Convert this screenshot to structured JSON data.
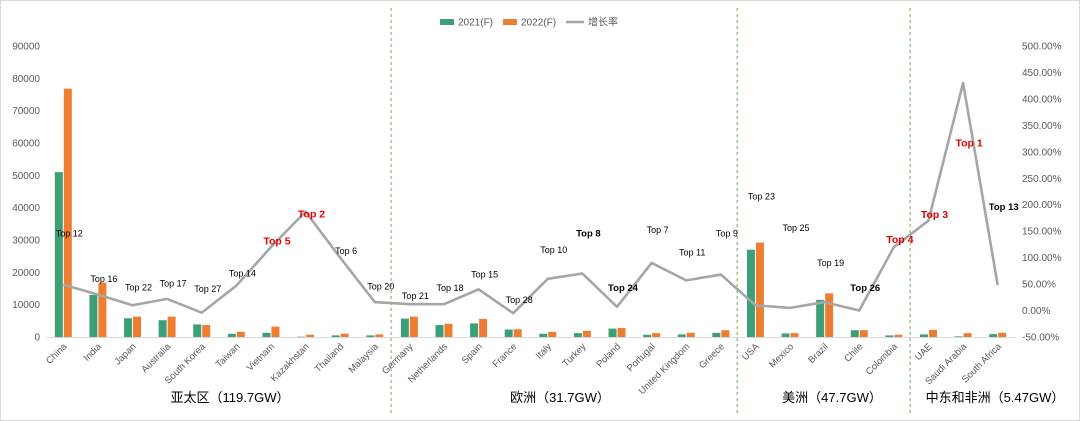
{
  "chart_data": {
    "type": "bar",
    "categories": [
      "China",
      "India",
      "Japan",
      "Australia",
      "South Korea",
      "Taiwan",
      "Vietnam",
      "Kazakhstan",
      "Thailand",
      "Malaysia",
      "Germany",
      "Netherlands",
      "Spain",
      "France",
      "Italy",
      "Turkey",
      "Poland",
      "Portugal",
      "United Kingdom",
      "Greece",
      "USA",
      "Mexico",
      "Brazil",
      "Chile",
      "Colombia",
      "UAE",
      "Saudi Arabia",
      "South Africa"
    ],
    "series": [
      {
        "name": "2021(F)",
        "axis": "left",
        "color": "#3d9f77",
        "values": [
          51000,
          13000,
          5800,
          5200,
          3900,
          1000,
          1300,
          100,
          500,
          500,
          5700,
          3700,
          4200,
          2300,
          1000,
          1200,
          2600,
          700,
          800,
          1300,
          27000,
          1100,
          11500,
          2100,
          500,
          800,
          200,
          900
        ]
      },
      {
        "name": "2022(F)",
        "axis": "left",
        "color": "#ed7d31",
        "values": [
          76800,
          16800,
          6300,
          6300,
          3700,
          1600,
          3200,
          700,
          1000,
          800,
          6300,
          4100,
          5600,
          2400,
          1600,
          1900,
          2800,
          1200,
          1300,
          2100,
          29200,
          1200,
          13500,
          2100,
          700,
          2200,
          1200,
          1300
        ]
      },
      {
        "name": "增长率",
        "axis": "right",
        "color": "#a6a6a6",
        "values": [
          49,
          30,
          10,
          22,
          -4,
          47,
          120,
          187,
          100,
          16,
          12,
          12,
          40,
          -5,
          60,
          70,
          7,
          90,
          57,
          68,
          10,
          5,
          16,
          0,
          120,
          170,
          430,
          48
        ]
      }
    ],
    "annotations": [
      {
        "index": 0,
        "text": "Top 12",
        "style": "normal",
        "y": 140
      },
      {
        "index": 1,
        "text": "Top 16",
        "style": "normal",
        "y": 54
      },
      {
        "index": 2,
        "text": "Top 22",
        "style": "normal",
        "y": 38
      },
      {
        "index": 3,
        "text": "Top 17",
        "style": "normal",
        "y": 45
      },
      {
        "index": 4,
        "text": "Top 27",
        "style": "normal",
        "y": 35
      },
      {
        "index": 5,
        "text": "Top 14",
        "style": "normal",
        "y": 64
      },
      {
        "index": 6,
        "text": "Top 5",
        "style": "red",
        "y": 125
      },
      {
        "index": 7,
        "text": "Top 2",
        "style": "red",
        "y": 176
      },
      {
        "index": 8,
        "text": "Top 6",
        "style": "normal",
        "y": 107
      },
      {
        "index": 9,
        "text": "Top 20",
        "style": "normal",
        "y": 40
      },
      {
        "index": 10,
        "text": "Top 21",
        "style": "normal",
        "y": 22
      },
      {
        "index": 11,
        "text": "Top 18",
        "style": "normal",
        "y": 37
      },
      {
        "index": 12,
        "text": "Top 15",
        "style": "normal",
        "y": 62
      },
      {
        "index": 13,
        "text": "Top 28",
        "style": "normal",
        "y": 14
      },
      {
        "index": 14,
        "text": "Top 10",
        "style": "normal",
        "y": 109
      },
      {
        "index": 15,
        "text": "Top 8",
        "style": "bold",
        "y": 140
      },
      {
        "index": 16,
        "text": "Top 24",
        "style": "bold",
        "y": 37
      },
      {
        "index": 17,
        "text": "Top 7",
        "style": "normal",
        "y": 147
      },
      {
        "index": 18,
        "text": "Top 11",
        "style": "normal",
        "y": 104
      },
      {
        "index": 19,
        "text": "Top 9",
        "style": "normal",
        "y": 140
      },
      {
        "index": 20,
        "text": "Top 23",
        "style": "normal",
        "y": 210
      },
      {
        "index": 21,
        "text": "Top 25",
        "style": "normal",
        "y": 150
      },
      {
        "index": 22,
        "text": "Top 19",
        "style": "normal",
        "y": 84
      },
      {
        "index": 23,
        "text": "Top 26",
        "style": "bold",
        "y": 37
      },
      {
        "index": 24,
        "text": "Top 4",
        "style": "red",
        "y": 128
      },
      {
        "index": 25,
        "text": "Top 3",
        "style": "red",
        "y": 175
      },
      {
        "index": 26,
        "text": "Top 1",
        "style": "red",
        "y": 310
      },
      {
        "index": 27,
        "text": "Top 13",
        "style": "bold",
        "y": 190
      }
    ],
    "regions": [
      {
        "label": "亚太区（119.7GW）",
        "start": 0,
        "end": 9
      },
      {
        "label": "欧洲（31.7GW）",
        "start": 10,
        "end": 19
      },
      {
        "label": "美洲（47.7GW）",
        "start": 20,
        "end": 24
      },
      {
        "label": "中东和非洲（5.47GW）",
        "start": 25,
        "end": 27
      }
    ],
    "y_left": {
      "min": 0,
      "max": 90000,
      "step": 10000,
      "ticks": [
        "0",
        "10000",
        "20000",
        "30000",
        "40000",
        "50000",
        "60000",
        "70000",
        "80000",
        "90000"
      ]
    },
    "y_right": {
      "min": -50,
      "max": 500,
      "step": 50,
      "ticks": [
        "-50.00%",
        "0.00%",
        "50.00%",
        "100.00%",
        "150.00%",
        "200.00%",
        "250.00%",
        "300.00%",
        "350.00%",
        "400.00%",
        "450.00%",
        "500.00%"
      ]
    },
    "legend_position": "top-center",
    "grid": false
  }
}
